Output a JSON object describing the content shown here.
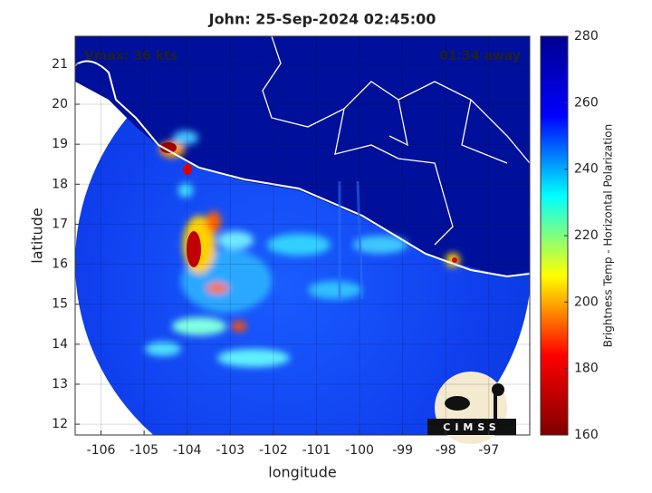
{
  "title": "John: 25-Sep-2024 02:45:00",
  "annotations": {
    "vmax": "Vmax: 36 kts",
    "time_away": "01:34 away"
  },
  "xaxis": {
    "label": "longitude",
    "lim": [
      -106.6,
      -96.05
    ],
    "ticks": [
      -106,
      -105,
      -104,
      -103,
      -102,
      -101,
      -100,
      -99,
      -98,
      -97
    ]
  },
  "yaxis": {
    "label": "latitude",
    "lim": [
      11.73,
      21.7
    ],
    "ticks": [
      12,
      13,
      14,
      15,
      16,
      17,
      18,
      19,
      20,
      21
    ]
  },
  "colorbar": {
    "label": "Brightness Temp - Horizontal Polarization",
    "lim": [
      160,
      280
    ],
    "ticks": [
      160,
      180,
      200,
      220,
      240,
      260,
      280
    ],
    "colors": [
      "#800000",
      "#ff0000",
      "#ffff00",
      "#00ffff",
      "#0000ff",
      "#00008f"
    ]
  },
  "logo": "CIMSS"
}
